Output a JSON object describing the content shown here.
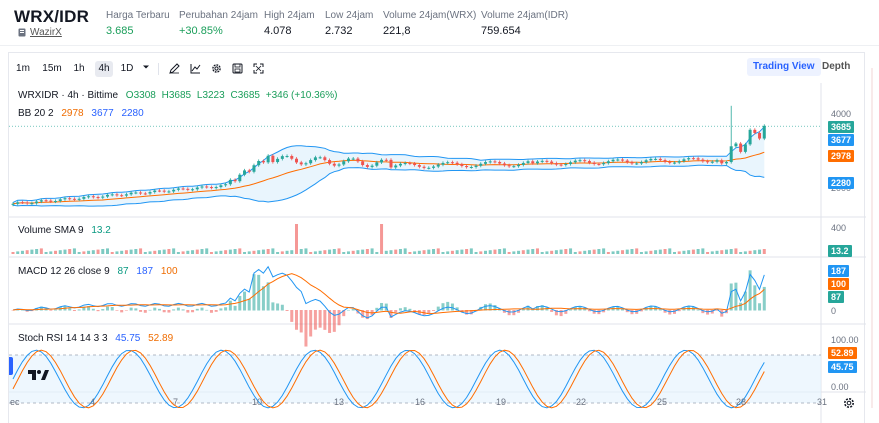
{
  "header": {
    "pair": "WRX/IDR",
    "exchange": "WazirX",
    "stats": [
      {
        "label": "Harga Terbaru",
        "value": "3.685",
        "tone": "green"
      },
      {
        "label": "Perubahan 24jam",
        "value": "+30.85%",
        "tone": "green"
      },
      {
        "label": "High 24jam",
        "value": "4.078",
        "tone": "dark"
      },
      {
        "label": "Low 24jam",
        "value": "2.732",
        "tone": "dark"
      },
      {
        "label": "Volume 24jam(WRX)",
        "value": "221,8",
        "tone": "dark"
      },
      {
        "label": "Volume 24jam(IDR)",
        "value": "759.654",
        "tone": "dark"
      }
    ]
  },
  "toolbar": {
    "intervals": [
      "1m",
      "15m",
      "1h",
      "4h",
      "1D"
    ],
    "active_interval": "4h",
    "tools": [
      "dropdown-icon",
      "draw-icon",
      "indicators-icon",
      "settings-icon",
      "snapshot-icon",
      "fullscreen-icon"
    ],
    "views": {
      "active": "Trading View",
      "other": "Depth"
    }
  },
  "legend": {
    "symbol": "WRXIDR · 4h · Bittime",
    "open_label": "O",
    "open": "3308",
    "high_label": "H",
    "high": "3685",
    "low_label": "L",
    "low": "3223",
    "close_label": "C",
    "close": "3685",
    "change": "+346 (+10.36%)",
    "bb": {
      "name": "BB 20 2",
      "basis": "2978",
      "upper": "3677",
      "lower": "2280"
    },
    "volume": {
      "name": "Volume SMA 9",
      "value": "13.2"
    },
    "macd": {
      "name": "MACD 12 26 close 9",
      "hist": "87",
      "macd": "187",
      "signal": "100"
    },
    "stoch": {
      "name": "Stoch RSI 14 14 3 3",
      "k": "45.75",
      "d": "52.89"
    }
  },
  "axis": {
    "price_ticks": [
      "4000",
      "3000",
      "2000"
    ],
    "volume_ticks": [
      "400",
      "0"
    ],
    "macd_ticks": [
      "0"
    ],
    "stoch_ticks": [
      "100.00",
      "0.00"
    ],
    "tags": {
      "price_last": "3685",
      "bb_upper": "3677",
      "bb_basis": "2978",
      "bb_lower": "2280",
      "volume": "13.2",
      "macd": "187",
      "signal": "100",
      "hist": "87",
      "stoch_d": "52.89",
      "stoch_k": "45.75"
    },
    "x_labels": [
      "ec",
      "4",
      "7",
      "10",
      "13",
      "16",
      "19",
      "22",
      "25",
      "28",
      "31"
    ]
  },
  "colors": {
    "up": "#26a69a",
    "down": "#ef5350",
    "bb": "#2196f3",
    "bb_basis": "#ff6d00",
    "fill": "#e3f2fd",
    "macd": "#2196f3",
    "signal": "#ff6d00",
    "k": "#2196f3",
    "d": "#ff6d00"
  },
  "chart_data": {
    "type": "line",
    "title": "WRXIDR · 4h · Bittime",
    "x": [
      "4",
      "7",
      "10",
      "13",
      "16",
      "19",
      "22",
      "25",
      "28",
      "31"
    ],
    "y_range": [
      1800,
      4200
    ],
    "series": [
      {
        "name": "BB 20 2 upper",
        "last": 3677
      },
      {
        "name": "BB 20 2 basis",
        "last": 2978
      },
      {
        "name": "BB 20 2 lower",
        "last": 2280
      },
      {
        "name": "Close",
        "last": 3685
      }
    ]
  }
}
